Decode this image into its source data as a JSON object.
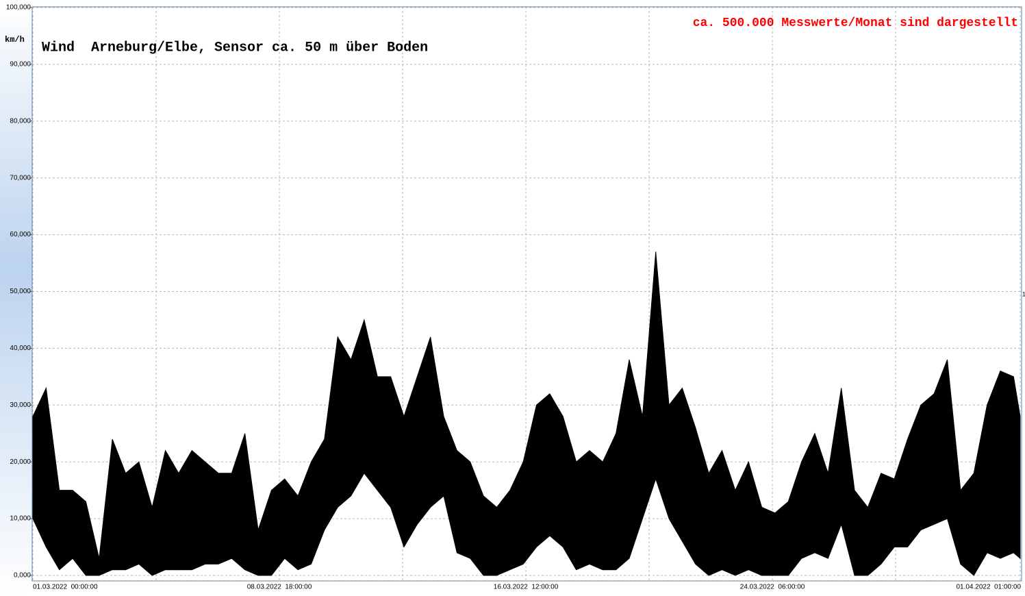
{
  "chart_data": {
    "type": "range",
    "title": "Wind  Arneburg/Elbe, Sensor ca. 50 m über Boden",
    "annotation": "ca. 500.000 Messwerte/Monat sind dargestellt",
    "right_marker": "1",
    "y_unit": "km/h",
    "x": [
      0,
      10,
      20,
      30,
      40,
      50,
      60,
      70,
      80,
      90,
      100,
      110,
      120,
      130,
      140,
      150,
      160,
      170,
      180,
      190,
      200,
      210,
      220,
      230,
      240,
      250,
      260,
      270,
      280,
      290,
      300,
      310,
      320,
      330,
      340,
      350,
      360,
      370,
      380,
      390,
      400,
      410,
      420,
      430,
      440,
      450,
      460,
      470,
      480,
      490,
      500,
      510,
      520,
      530,
      540,
      550,
      560,
      570,
      580,
      590,
      600,
      610,
      620,
      630,
      640,
      650,
      660,
      670,
      680,
      690,
      700,
      710,
      720,
      730,
      740,
      745
    ],
    "series": [
      {
        "color": "#000000",
        "values": [
          28,
          33,
          15,
          15,
          13,
          3,
          24,
          18,
          20,
          12,
          22,
          18,
          22,
          20,
          18,
          18,
          25,
          8,
          15,
          17,
          14,
          20,
          24,
          42,
          38,
          45,
          35,
          35,
          28,
          35,
          42,
          28,
          22,
          20,
          14,
          12,
          15,
          20,
          30,
          32,
          28,
          20,
          22,
          20,
          25,
          38,
          28,
          57,
          30,
          33,
          26,
          18,
          22,
          15,
          20,
          12,
          11,
          13,
          20,
          25,
          18,
          33,
          15,
          12,
          18,
          17,
          24,
          30,
          32,
          38,
          15,
          18,
          30,
          36,
          35,
          28
        ]
      },
      {
        "color": "#000000",
        "values": [
          10,
          5,
          1,
          3,
          0,
          0,
          1,
          1,
          2,
          0,
          1,
          1,
          1,
          2,
          2,
          3,
          1,
          0,
          0,
          3,
          1,
          2,
          8,
          12,
          14,
          18,
          15,
          12,
          5,
          9,
          12,
          14,
          4,
          3,
          0,
          0,
          1,
          2,
          5,
          7,
          5,
          1,
          2,
          1,
          1,
          3,
          10,
          17,
          10,
          6,
          2,
          0,
          1,
          0,
          1,
          0,
          0,
          0,
          3,
          4,
          3,
          9,
          0,
          0,
          2,
          5,
          5,
          8,
          9,
          10,
          2,
          0,
          4,
          3,
          4,
          3
        ]
      }
    ],
    "xlim": [
      0,
      745
    ],
    "xticks": [
      {
        "value": 0,
        "label": "01.03.2022  00:00:00"
      },
      {
        "value": 186,
        "label": "08.03.2022  18:00:00"
      },
      {
        "value": 372,
        "label": "16.03.2022  12:00:00"
      },
      {
        "value": 558,
        "label": "24.03.2022  06:00:00"
      },
      {
        "value": 745,
        "label": "01.04.2022  01:00:00"
      }
    ],
    "x_minor_grid": [
      93,
      279,
      465,
      651
    ],
    "ylim": [
      0,
      100
    ],
    "yticks": [
      {
        "value": 0,
        "label": "0,000"
      },
      {
        "value": 10,
        "label": "10,000"
      },
      {
        "value": 20,
        "label": "20,000"
      },
      {
        "value": 30,
        "label": "30,000"
      },
      {
        "value": 40,
        "label": "40,000"
      },
      {
        "value": 50,
        "label": "50,000"
      },
      {
        "value": 60,
        "label": "60,000"
      },
      {
        "value": 70,
        "label": "70,000"
      },
      {
        "value": 80,
        "label": "80,000"
      },
      {
        "value": 90,
        "label": "90,000"
      },
      {
        "value": 100,
        "label": "100,000"
      }
    ],
    "grid": true
  }
}
